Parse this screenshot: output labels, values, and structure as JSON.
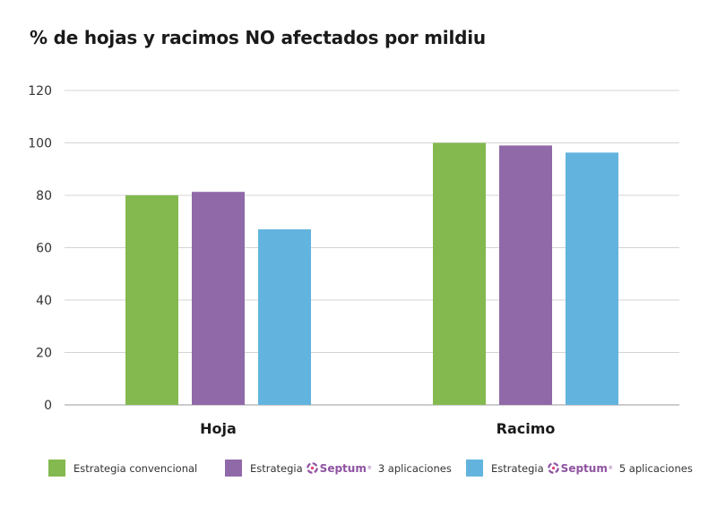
{
  "chart_data": {
    "type": "bar",
    "title": "% de hojas y racimos NO afectados por mildiu",
    "categories": [
      "Hoja",
      "Racimo"
    ],
    "ylim": [
      0,
      120
    ],
    "yticks": [
      "0",
      "20",
      "40",
      "60",
      "80",
      "100",
      "120"
    ],
    "grid": true,
    "legend_position": "bottom",
    "series": [
      {
        "name": "Estrategia convencional",
        "values": [
          80,
          100
        ],
        "color": "#84b94f"
      },
      {
        "name": "Estrategia Septum 3 aplicaciones",
        "values": [
          81.3,
          99
        ],
        "color": "#9069a8"
      },
      {
        "name": "Estrategia Septum 5 aplicaciones",
        "values": [
          67,
          96.3
        ],
        "color": "#62b4de"
      }
    ]
  },
  "legend": {
    "item1": {
      "label": "Estrategia convencional",
      "color": "#84b94f"
    },
    "item2": {
      "prefix": "Estrategia",
      "brand": "Septum",
      "brand_mark": "®",
      "suffix": "3 aplicaciones",
      "color": "#9069a8",
      "icon": "septum-logo-icon"
    },
    "item3": {
      "prefix": "Estrategia",
      "brand": "Septum",
      "brand_mark": "®",
      "suffix": "5 aplicaciones",
      "color": "#62b4de",
      "icon": "septum-logo-icon"
    }
  },
  "colors": {
    "brand": "#8e52a1",
    "grid": "#d4d4d4"
  }
}
